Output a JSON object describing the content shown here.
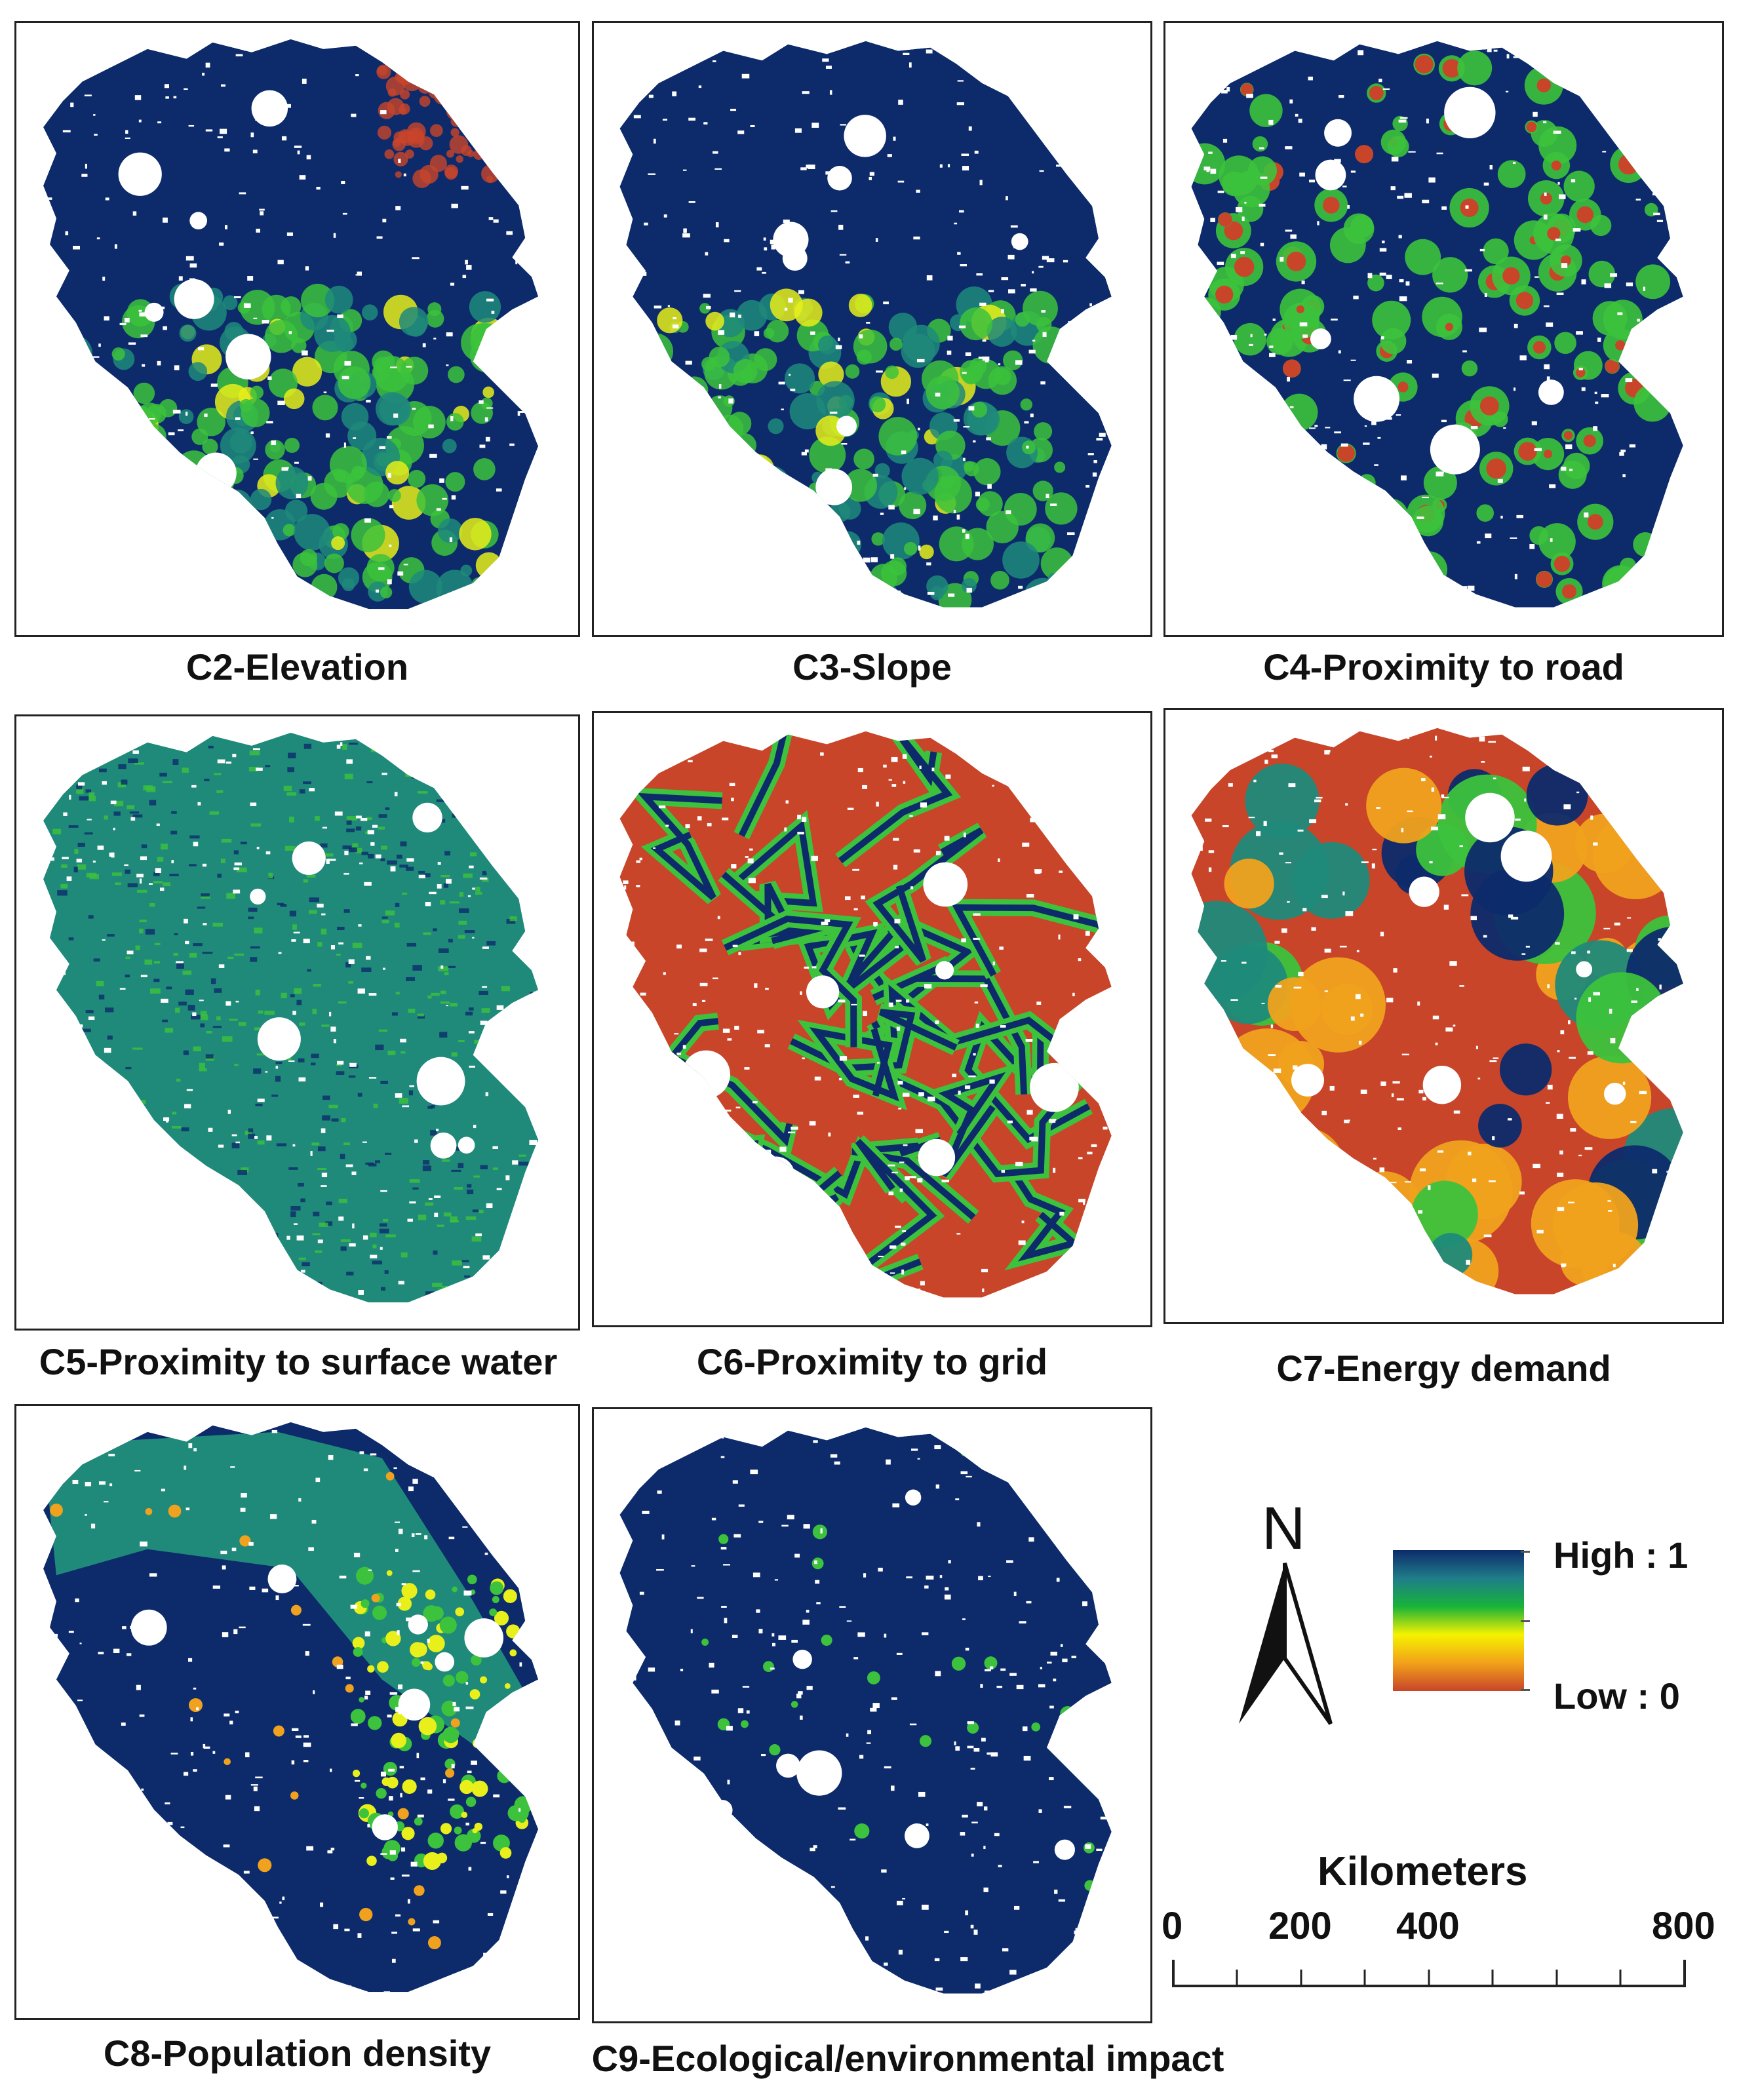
{
  "panels": [
    {
      "id": "c2",
      "caption": "C2-Elevation",
      "scheme": "elevation"
    },
    {
      "id": "c3",
      "caption": "C3-Slope",
      "scheme": "slope"
    },
    {
      "id": "c4",
      "caption": "C4-Proximity to road",
      "scheme": "road"
    },
    {
      "id": "c5",
      "caption": "C5-Proximity to surface water",
      "scheme": "water"
    },
    {
      "id": "c6",
      "caption": "C6-Proximity to grid",
      "scheme": "grid"
    },
    {
      "id": "c7",
      "caption": "C7-Energy demand",
      "scheme": "energy"
    },
    {
      "id": "c8",
      "caption": "C8-Population density",
      "scheme": "population"
    },
    {
      "id": "c9",
      "caption": "C9-Ecological/environmental impact",
      "scheme": "ecology"
    }
  ],
  "legend": {
    "north_label": "N",
    "high_label": "High : 1",
    "low_label": "Low : 0",
    "gradient_colors": [
      "#0d2b6b",
      "#1f7d8a",
      "#17b33a",
      "#f5f200",
      "#f2a21a",
      "#c8452a"
    ]
  },
  "scale_bar": {
    "title": "Kilometers",
    "ticks": [
      "0",
      "200",
      "400",
      "800"
    ]
  },
  "colors": {
    "dark_blue": "#0d2b6b",
    "teal": "#1f8a7a",
    "green": "#3cc23c",
    "yellow": "#e8ef1a",
    "orange": "#f0a21e",
    "red": "#c8452a"
  }
}
